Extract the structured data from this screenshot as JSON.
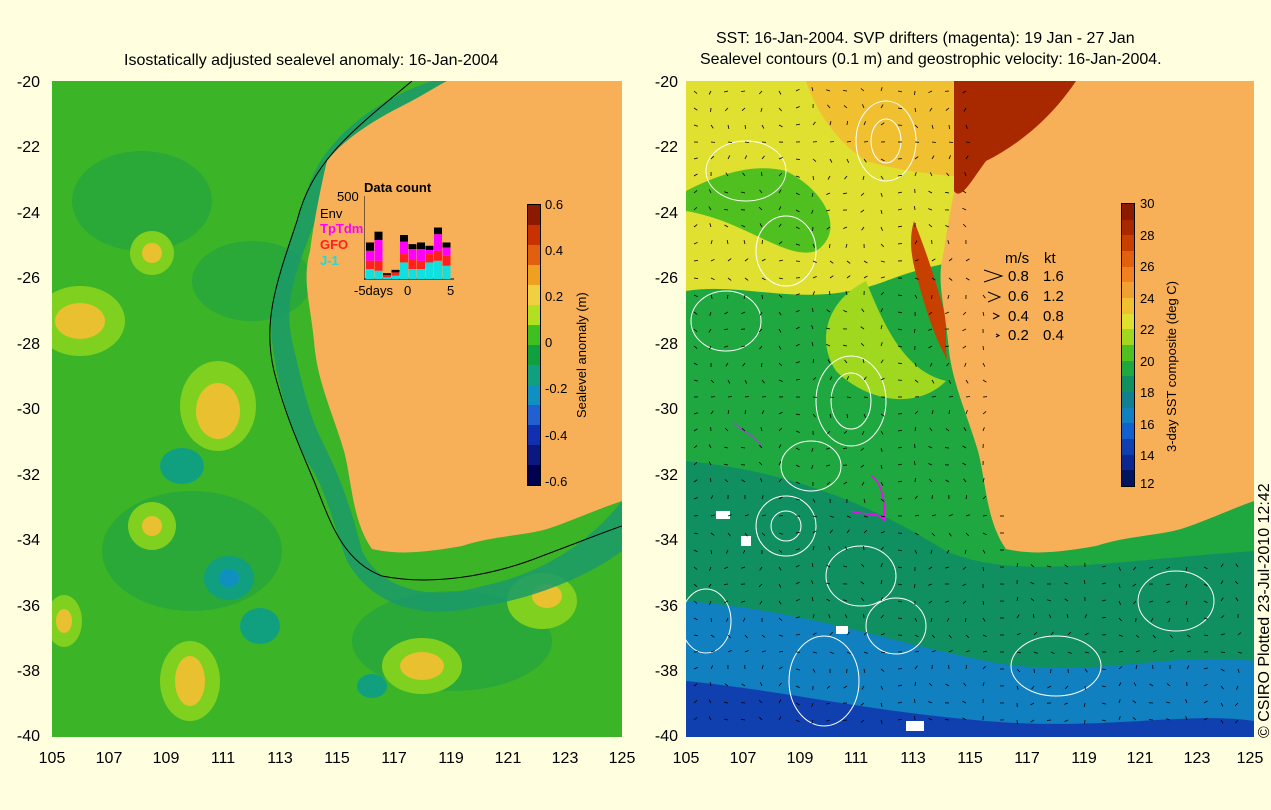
{
  "colors": {
    "background": "#ffffe0",
    "land": "#f8b058",
    "ocean_green": "#3cb428",
    "ocean_dark": "#1a9a3a",
    "ssh_high": "#e8c030",
    "env": "#000000",
    "tptdm": "#ff00ff",
    "gfo": "#ff2020",
    "j1": "#10e0e0",
    "drifter": "#ff00ff"
  },
  "left_map": {
    "title": "Isostatically adjusted sealevel anomaly: 16-Jan-2004",
    "y_ticks": [
      "-20",
      "-22",
      "-24",
      "-26",
      "-28",
      "-30",
      "-32",
      "-34",
      "-36",
      "-38",
      "-40"
    ],
    "x_ticks": [
      "105",
      "107",
      "109",
      "111",
      "113",
      "115",
      "117",
      "119",
      "121",
      "123",
      "125"
    ],
    "colorbar": {
      "label": "Sealevel anomaly (m)",
      "ticks": [
        "0.6",
        "0.4",
        "0.2",
        "0",
        "-0.2",
        "-0.4",
        "-0.6"
      ],
      "colors": [
        "#8b1a00",
        "#c83200",
        "#e06010",
        "#f0a020",
        "#f0d040",
        "#b0e020",
        "#40c020",
        "#10a040",
        "#10a080",
        "#1090c0",
        "#2060d0",
        "#1030b0",
        "#0a1880",
        "#000050"
      ]
    },
    "data_count": {
      "title": "Data count",
      "max_label": "500",
      "legend": [
        "Env",
        "TpTdm",
        "GFO",
        "J-1"
      ],
      "x_ticks": [
        "-5days",
        "0",
        "5"
      ],
      "bars": [
        {
          "j1": 0.12,
          "gfo": 0.1,
          "tptdm": 0.12,
          "env": 0.1
        },
        {
          "j1": 0.1,
          "gfo": 0.12,
          "tptdm": 0.25,
          "env": 0.1
        },
        {
          "j1": 0.02,
          "gfo": 0.03,
          "tptdm": 0.0,
          "env": 0.02
        },
        {
          "j1": 0.04,
          "gfo": 0.04,
          "tptdm": 0.0,
          "env": 0.03
        },
        {
          "j1": 0.2,
          "gfo": 0.1,
          "tptdm": 0.15,
          "env": 0.08
        },
        {
          "j1": 0.12,
          "gfo": 0.12,
          "tptdm": 0.12,
          "env": 0.06
        },
        {
          "j1": 0.12,
          "gfo": 0.1,
          "tptdm": 0.14,
          "env": 0.08
        },
        {
          "j1": 0.2,
          "gfo": 0.1,
          "tptdm": 0.05,
          "env": 0.05
        },
        {
          "j1": 0.22,
          "gfo": 0.12,
          "tptdm": 0.2,
          "env": 0.08
        },
        {
          "j1": 0.16,
          "gfo": 0.12,
          "tptdm": 0.1,
          "env": 0.06
        }
      ]
    }
  },
  "right_map": {
    "title_line1": "SST: 16-Jan-2004. SVP drifters (magenta): 19 Jan - 27 Jan",
    "title_line2": "Sealevel contours (0.1 m) and geostrophic velocity: 16-Jan-2004.",
    "y_ticks": [
      "-20",
      "-22",
      "-24",
      "-26",
      "-28",
      "-30",
      "-32",
      "-34",
      "-36",
      "-38",
      "-40"
    ],
    "x_ticks": [
      "105",
      "107",
      "109",
      "111",
      "113",
      "115",
      "117",
      "119",
      "121",
      "123",
      "125"
    ],
    "colorbar": {
      "label": "3-day SST composite (deg C)",
      "ticks": [
        "30",
        "28",
        "26",
        "24",
        "22",
        "20",
        "18",
        "16",
        "14",
        "12"
      ],
      "colors": [
        "#8b1a00",
        "#a82800",
        "#c84000",
        "#e06010",
        "#f08020",
        "#f0a030",
        "#f0c030",
        "#e0e030",
        "#a0d820",
        "#50c020",
        "#20a840",
        "#109060",
        "#108090",
        "#1080c0",
        "#1060d0",
        "#1040b0",
        "#0a2890",
        "#001460"
      ]
    },
    "velocity_legend": {
      "header_ms": "m/s",
      "header_kt": "kt",
      "rows": [
        {
          "ms": "0.8",
          "kt": "1.6"
        },
        {
          "ms": "0.6",
          "kt": "1.2"
        },
        {
          "ms": "0.4",
          "kt": "0.8"
        },
        {
          "ms": "0.2",
          "kt": "0.4"
        }
      ]
    }
  },
  "credit": "© CSIRO Plotted 23-Jul-2010 12:42"
}
